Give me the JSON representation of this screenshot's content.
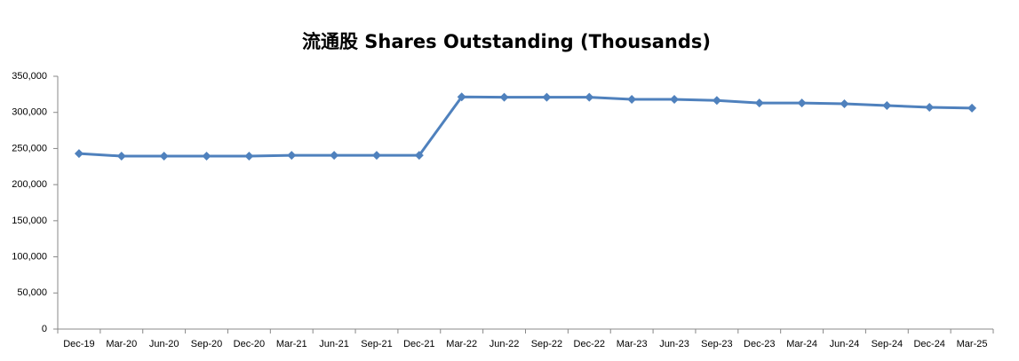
{
  "chart_data": {
    "type": "line",
    "title": "流通股 Shares Outstanding (Thousands)",
    "categories": [
      "Dec-19",
      "Mar-20",
      "Jun-20",
      "Sep-20",
      "Dec-20",
      "Mar-21",
      "Jun-21",
      "Sep-21",
      "Dec-21",
      "Mar-22",
      "Jun-22",
      "Sep-22",
      "Dec-22",
      "Mar-23",
      "Jun-23",
      "Sep-23",
      "Dec-23",
      "Mar-24",
      "Jun-24",
      "Sep-24",
      "Dec-24",
      "Mar-25"
    ],
    "series": [
      {
        "color": "#4f81bd",
        "values": [
          243000,
          239500,
          239500,
          239500,
          239500,
          240500,
          240500,
          240500,
          240500,
          321500,
          321000,
          321000,
          321000,
          318000,
          318000,
          316500,
          313000,
          313000,
          312000,
          309500,
          307000,
          306000
        ]
      }
    ],
    "ylim": [
      0,
      350000
    ],
    "yticks": [
      0,
      {
        "value": 50000,
        "label": "50,000"
      },
      {
        "value": 100000,
        "label": "100,000"
      },
      {
        "value": 150000,
        "label": "150,000"
      },
      {
        "value": 200000,
        "label": "200,000"
      },
      {
        "value": 250000,
        "label": "250,000"
      },
      {
        "value": 300000,
        "label": "300,000"
      },
      {
        "value": 350000,
        "label": "350,000"
      }
    ],
    "grid": false
  }
}
